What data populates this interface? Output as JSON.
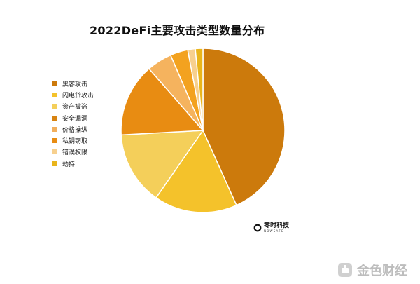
{
  "chart_data": {
    "type": "pie",
    "title": "2022DeFi主要攻击类型数量分布",
    "legend_position": "left",
    "slices": [
      {
        "label": "黑客攻击",
        "value": 43.5,
        "color": "#CC7A0C"
      },
      {
        "label": "闪电贷攻击",
        "value": 16.5,
        "color": "#F4C22B"
      },
      {
        "label": "资产被盗",
        "value": 14.5,
        "color": "#F4CF5A"
      },
      {
        "label": "安全漏洞",
        "value": 0.0,
        "color": "#D88412"
      },
      {
        "label": "价格操纵",
        "value": 0.0,
        "color": "#F2AF5C"
      },
      {
        "label": "私钥窃取",
        "value": 14.5,
        "color": "#E88C12"
      },
      {
        "label": "",
        "value": 5.0,
        "color": "#F5B35E"
      },
      {
        "label": "",
        "value": 3.5,
        "color": "#F3A21F"
      },
      {
        "label": "错误权限",
        "value": 1.5,
        "color": "#F7D08E"
      },
      {
        "label": "劫持",
        "value": 1.5,
        "color": "#E9B51C"
      }
    ]
  },
  "logo": {
    "name": "零时科技",
    "subtitle": "NOWSAFE"
  },
  "watermark": {
    "text": "金色财经"
  }
}
